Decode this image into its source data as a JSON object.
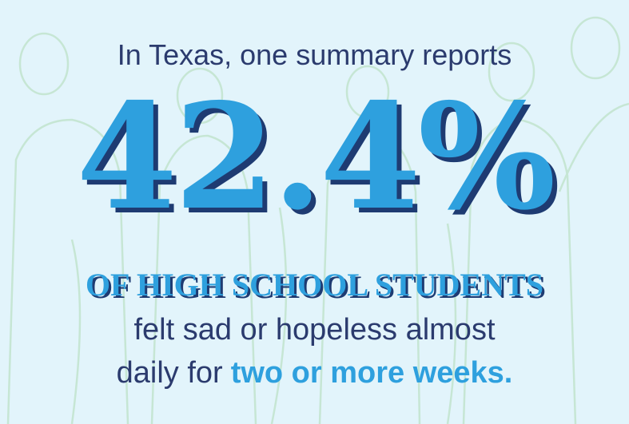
{
  "intro": "In Texas, one summary reports",
  "statistic": "42.4%",
  "subject": "OF HIGH SCHOOL STUDENTS",
  "body_line1": "felt sad or hopeless almost",
  "body_line2_prefix": "daily for",
  "body_line2_emphasis": "two or more weeks."
}
